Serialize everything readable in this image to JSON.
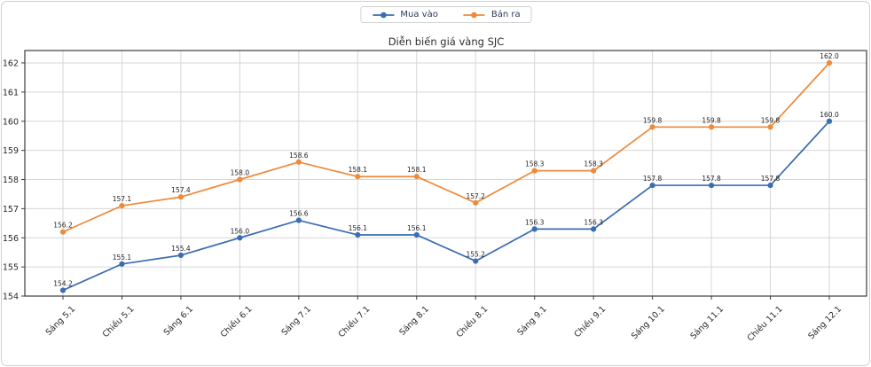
{
  "chart_data": {
    "type": "line",
    "title": "Diễn biến giá vàng SJC",
    "categories": [
      "Sáng 5.1",
      "Chiều 5.1",
      "Sáng 6.1",
      "Chiều 6.1",
      "Sáng 7.1",
      "Chiều 7.1",
      "Sáng 8.1",
      "Chiều 8.1",
      "Sáng 9.1",
      "Chiều 9.1",
      "Sáng 10.1",
      "Sáng 11.1",
      "Chiều 11.1",
      "Sáng 12.1"
    ],
    "series": [
      {
        "name": "Mua vào",
        "color": "#3a6db3",
        "values": [
          154.2,
          155.1,
          155.4,
          156.0,
          156.6,
          156.1,
          156.1,
          155.2,
          156.3,
          156.3,
          157.8,
          157.8,
          157.8,
          160.0
        ]
      },
      {
        "name": "Bán ra",
        "color": "#ee8a3b",
        "values": [
          156.2,
          157.1,
          157.4,
          158.0,
          158.6,
          158.1,
          158.1,
          157.2,
          158.3,
          158.3,
          159.8,
          159.8,
          159.8,
          162.0
        ]
      }
    ],
    "yticks": [
      154,
      155,
      156,
      157,
      158,
      159,
      160,
      161,
      162
    ],
    "ylim": [
      154,
      162.4
    ],
    "grid": true,
    "legend_position": "top-center",
    "point_labels": true,
    "colors": {
      "grid": "#d6d6d6",
      "spine": "#3c3c3c",
      "tick_label": "#262626",
      "point_label": "#1f1f1f"
    }
  }
}
